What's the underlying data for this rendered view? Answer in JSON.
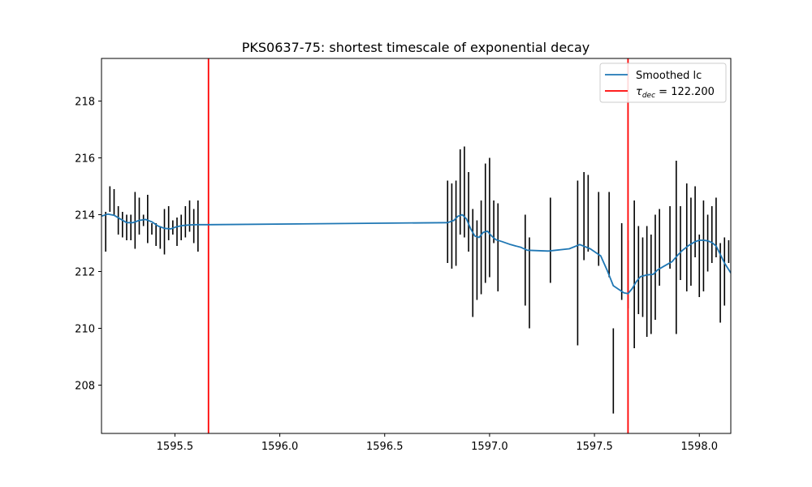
{
  "chart_data": {
    "type": "line",
    "title": "PKS0637-75: shortest timescale of exponential decay",
    "xlabel": "",
    "ylabel": "",
    "xlim": [
      1595.15,
      1598.15
    ],
    "ylim": [
      206.3,
      219.5
    ],
    "xticks": [
      1595.5,
      1596.0,
      1596.5,
      1597.0,
      1597.5,
      1598.0
    ],
    "xtick_labels": [
      "1595.5",
      "1596.0",
      "1596.5",
      "1597.0",
      "1597.5",
      "1598.0"
    ],
    "yticks": [
      208,
      210,
      212,
      214,
      216,
      218
    ],
    "ytick_labels": [
      "208",
      "210",
      "212",
      "214",
      "216",
      "218"
    ],
    "grid": false,
    "legend_position": "top-right",
    "colors": {
      "smoothed": "#1f77b4",
      "vline": "#ff0000",
      "errorbar": "#000000"
    },
    "series": [
      {
        "name": "Smoothed lc",
        "kind": "line",
        "x": [
          1595.15,
          1595.18,
          1595.21,
          1595.24,
          1595.27,
          1595.3,
          1595.33,
          1595.36,
          1595.39,
          1595.42,
          1595.45,
          1595.48,
          1595.51,
          1595.54,
          1595.57,
          1595.6,
          1595.63,
          1595.66,
          1596.8,
          1596.83,
          1596.85,
          1596.87,
          1596.89,
          1596.91,
          1596.93,
          1596.95,
          1596.97,
          1596.99,
          1597.01,
          1597.03,
          1597.06,
          1597.1,
          1597.15,
          1597.18,
          1597.28,
          1597.38,
          1597.43,
          1597.48,
          1597.53,
          1597.56,
          1597.59,
          1597.62,
          1597.64,
          1597.66,
          1597.68,
          1597.7,
          1597.72,
          1597.75,
          1597.78,
          1597.8,
          1597.83,
          1597.87,
          1597.9,
          1597.92,
          1597.95,
          1597.98,
          1598.0,
          1598.02,
          1598.04,
          1598.06,
          1598.08,
          1598.1,
          1598.12,
          1598.15
        ],
        "y": [
          213.95,
          214.02,
          213.98,
          213.85,
          213.72,
          213.72,
          213.8,
          213.83,
          213.75,
          213.6,
          213.52,
          213.5,
          213.58,
          213.62,
          213.64,
          213.65,
          213.65,
          213.65,
          213.72,
          213.8,
          213.95,
          214.0,
          213.85,
          213.5,
          213.25,
          213.2,
          213.38,
          213.42,
          213.25,
          213.12,
          213.05,
          212.95,
          212.85,
          212.75,
          212.72,
          212.8,
          212.95,
          212.8,
          212.55,
          212.05,
          211.5,
          211.35,
          211.25,
          211.22,
          211.4,
          211.65,
          211.82,
          211.88,
          211.9,
          212.05,
          212.18,
          212.35,
          212.6,
          212.75,
          212.92,
          213.05,
          213.1,
          213.1,
          213.08,
          213.02,
          212.9,
          212.6,
          212.3,
          211.95
        ]
      },
      {
        "name": "errorbars",
        "kind": "errorbar",
        "x": [
          1595.17,
          1595.19,
          1595.21,
          1595.23,
          1595.25,
          1595.27,
          1595.29,
          1595.31,
          1595.33,
          1595.35,
          1595.37,
          1595.39,
          1595.41,
          1595.43,
          1595.45,
          1595.47,
          1595.49,
          1595.51,
          1595.53,
          1595.55,
          1595.57,
          1595.59,
          1595.61,
          1596.8,
          1596.82,
          1596.84,
          1596.86,
          1596.88,
          1596.9,
          1596.92,
          1596.94,
          1596.96,
          1596.98,
          1597.0,
          1597.02,
          1597.04,
          1597.17,
          1597.19,
          1597.29,
          1597.42,
          1597.45,
          1597.47,
          1597.52,
          1597.57,
          1597.59,
          1597.63,
          1597.66,
          1597.69,
          1597.71,
          1597.73,
          1597.75,
          1597.77,
          1597.79,
          1597.81,
          1597.86,
          1597.89,
          1597.91,
          1597.94,
          1597.96,
          1597.98,
          1598.0,
          1598.02,
          1598.04,
          1598.06,
          1598.08,
          1598.1,
          1598.12,
          1598.14
        ],
        "ylow": [
          212.7,
          214.1,
          214.0,
          213.3,
          213.2,
          213.1,
          213.1,
          212.8,
          213.3,
          213.6,
          213.0,
          213.3,
          212.9,
          212.8,
          212.6,
          213.1,
          213.3,
          212.9,
          213.1,
          213.2,
          213.4,
          213.0,
          212.7,
          212.3,
          212.1,
          212.2,
          213.3,
          213.2,
          212.7,
          210.4,
          211.0,
          211.2,
          211.6,
          211.8,
          213.0,
          211.3,
          210.8,
          210.0,
          211.6,
          209.4,
          212.4,
          212.7,
          212.2,
          211.8,
          207.0,
          211.0,
          210.7,
          209.3,
          210.5,
          210.4,
          209.7,
          209.8,
          210.3,
          211.5,
          212.1,
          209.8,
          211.7,
          211.3,
          211.5,
          212.5,
          211.1,
          211.3,
          212.0,
          212.3,
          212.5,
          210.2,
          210.8,
          212.3
        ],
        "yhigh": [
          214.1,
          215.0,
          214.9,
          214.3,
          214.1,
          214.0,
          214.0,
          214.8,
          214.6,
          214.0,
          214.7,
          213.7,
          213.7,
          213.6,
          214.2,
          214.3,
          213.8,
          213.9,
          214.0,
          214.3,
          214.5,
          214.2,
          214.5,
          215.2,
          215.1,
          215.2,
          216.3,
          216.4,
          215.5,
          214.2,
          213.8,
          214.5,
          215.8,
          216.0,
          214.5,
          214.4,
          214.0,
          213.2,
          214.6,
          215.2,
          215.5,
          215.4,
          214.8,
          214.8,
          210.0,
          213.7,
          213.1,
          214.5,
          213.6,
          213.2,
          213.6,
          213.3,
          214.0,
          214.2,
          214.3,
          215.9,
          214.3,
          215.1,
          214.6,
          215.0,
          213.3,
          214.5,
          214.0,
          214.3,
          214.6,
          213.0,
          213.2,
          213.1
        ]
      }
    ],
    "vlines": [
      {
        "x": 1595.66
      },
      {
        "x": 1597.66
      }
    ],
    "legend": {
      "items": [
        {
          "label": "Smoothed lc",
          "color": "#1f77b4"
        },
        {
          "label_prefix": "τ",
          "label_sub": "dec",
          "label_suffix": " = 122.200",
          "color": "#ff0000"
        }
      ]
    }
  }
}
